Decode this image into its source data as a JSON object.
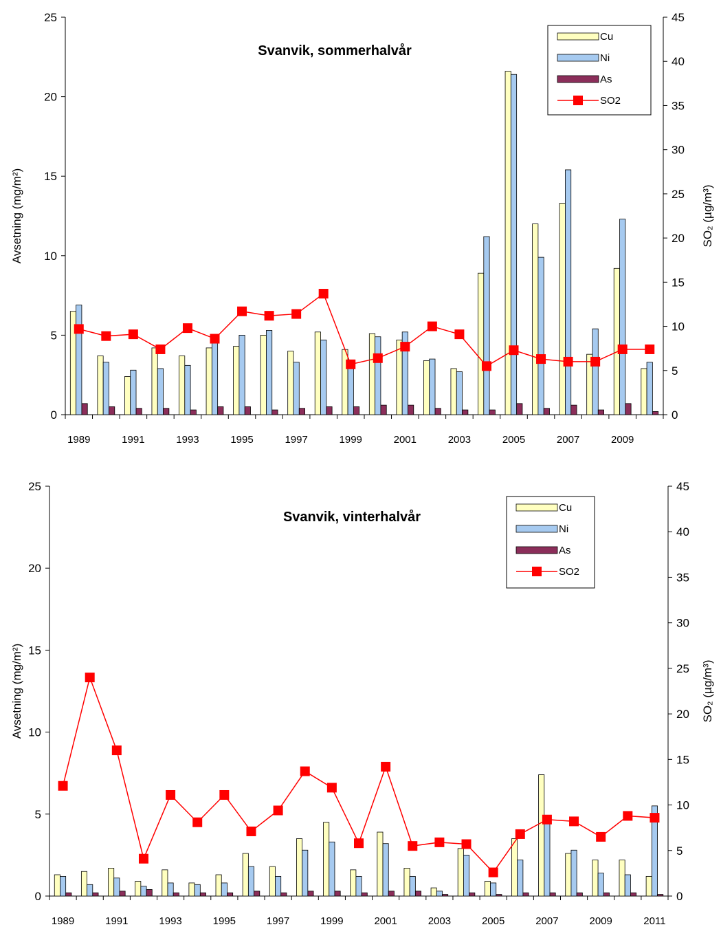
{
  "colors": {
    "cu": "#FFFFC0",
    "ni": "#A6CAF0",
    "as": "#8B2E5A",
    "so2": "#FF0000"
  },
  "chart_data": [
    {
      "type": "bar",
      "title": "Svanvik, sommerhalvår",
      "ylabel": "Avsetning (mg/m²)",
      "y2label": "SO₂ (µg/m³)",
      "ylim": [
        0,
        25
      ],
      "y2lim": [
        0,
        45
      ],
      "yticks": [
        "0",
        "5",
        "10",
        "15",
        "20",
        "25"
      ],
      "y2ticks": [
        "0",
        "5",
        "10",
        "15",
        "20",
        "25",
        "30",
        "35",
        "40",
        "45"
      ],
      "x": [
        1989,
        1990,
        1991,
        1992,
        1993,
        1994,
        1995,
        1996,
        1997,
        1998,
        1999,
        2000,
        2001,
        2002,
        2003,
        2004,
        2005,
        2006,
        2007,
        2008,
        2009,
        2010
      ],
      "xticks": [
        "1989",
        "1991",
        "1993",
        "1995",
        "1997",
        "1999",
        "2001",
        "2003",
        "2005",
        "2007",
        "2009"
      ],
      "legend_position": "top-right",
      "series": [
        {
          "name": "Cu",
          "kind": "bar",
          "axis": "left",
          "values": [
            6.5,
            3.7,
            2.4,
            4.2,
            3.7,
            4.2,
            4.3,
            5.0,
            4.0,
            5.2,
            4.1,
            5.1,
            4.7,
            3.4,
            2.9,
            8.9,
            21.6,
            12.0,
            13.3,
            3.8,
            9.2,
            2.9
          ]
        },
        {
          "name": "Ni",
          "kind": "bar",
          "axis": "left",
          "values": [
            6.9,
            3.3,
            2.8,
            2.9,
            3.1,
            4.7,
            5.0,
            5.3,
            3.3,
            4.7,
            3.0,
            4.9,
            5.2,
            3.5,
            2.7,
            11.2,
            21.4,
            9.9,
            15.4,
            5.4,
            12.3,
            3.3
          ]
        },
        {
          "name": "As",
          "kind": "bar",
          "axis": "left",
          "values": [
            0.7,
            0.5,
            0.4,
            0.4,
            0.3,
            0.5,
            0.5,
            0.3,
            0.4,
            0.5,
            0.5,
            0.6,
            0.6,
            0.4,
            0.3,
            0.3,
            0.7,
            0.4,
            0.6,
            0.3,
            0.7,
            0.2
          ]
        },
        {
          "name": "SO2",
          "kind": "line",
          "axis": "right",
          "values": [
            9.7,
            8.9,
            9.1,
            7.4,
            9.8,
            8.6,
            11.7,
            11.2,
            11.4,
            13.7,
            5.7,
            6.4,
            7.7,
            10.0,
            9.1,
            5.5,
            7.3,
            6.3,
            6.0,
            6.0,
            7.4,
            7.4
          ]
        }
      ]
    },
    {
      "type": "bar",
      "title": "Svanvik, vinterhalvår",
      "ylabel": "Avsetning (mg/m²)",
      "y2label": "SO₂ (µg/m³)",
      "ylim": [
        0,
        25
      ],
      "y2lim": [
        0,
        45
      ],
      "yticks": [
        "0",
        "5",
        "10",
        "15",
        "20",
        "25"
      ],
      "y2ticks": [
        "0",
        "5",
        "10",
        "15",
        "20",
        "25",
        "30",
        "35",
        "40",
        "45"
      ],
      "x": [
        1989,
        1990,
        1991,
        1992,
        1993,
        1994,
        1995,
        1996,
        1997,
        1998,
        1999,
        2000,
        2001,
        2002,
        2003,
        2004,
        2005,
        2006,
        2007,
        2008,
        2009,
        2010,
        2011
      ],
      "xticks": [
        "1989",
        "1991",
        "1993",
        "1995",
        "1997",
        "1999",
        "2001",
        "2003",
        "2005",
        "2007",
        "2009",
        "2011"
      ],
      "legend_position": "top-right",
      "series": [
        {
          "name": "Cu",
          "kind": "bar",
          "axis": "left",
          "values": [
            1.3,
            1.5,
            1.7,
            0.9,
            1.6,
            0.8,
            1.3,
            2.6,
            1.8,
            3.5,
            4.5,
            1.6,
            3.9,
            1.7,
            0.5,
            2.9,
            0.9,
            3.5,
            7.4,
            2.6,
            2.2,
            2.2,
            1.2
          ]
        },
        {
          "name": "Ni",
          "kind": "bar",
          "axis": "left",
          "values": [
            1.2,
            0.7,
            1.1,
            0.6,
            0.8,
            0.7,
            0.8,
            1.8,
            1.2,
            2.8,
            3.3,
            1.2,
            3.2,
            1.2,
            0.3,
            2.5,
            0.8,
            2.2,
            4.8,
            2.8,
            1.4,
            1.3,
            5.5
          ]
        },
        {
          "name": "As",
          "kind": "bar",
          "axis": "left",
          "values": [
            0.2,
            0.2,
            0.3,
            0.4,
            0.2,
            0.2,
            0.2,
            0.3,
            0.2,
            0.3,
            0.3,
            0.2,
            0.3,
            0.3,
            0.1,
            0.2,
            0.1,
            0.2,
            0.2,
            0.2,
            0.2,
            0.2,
            0.1
          ]
        },
        {
          "name": "SO2",
          "kind": "line",
          "axis": "right",
          "values": [
            12.1,
            24.0,
            16.0,
            4.1,
            11.1,
            8.1,
            11.1,
            7.1,
            9.4,
            13.7,
            11.9,
            5.8,
            14.2,
            5.5,
            5.9,
            5.7,
            2.6,
            6.8,
            8.4,
            8.2,
            6.5,
            8.8,
            8.6
          ]
        }
      ]
    }
  ]
}
